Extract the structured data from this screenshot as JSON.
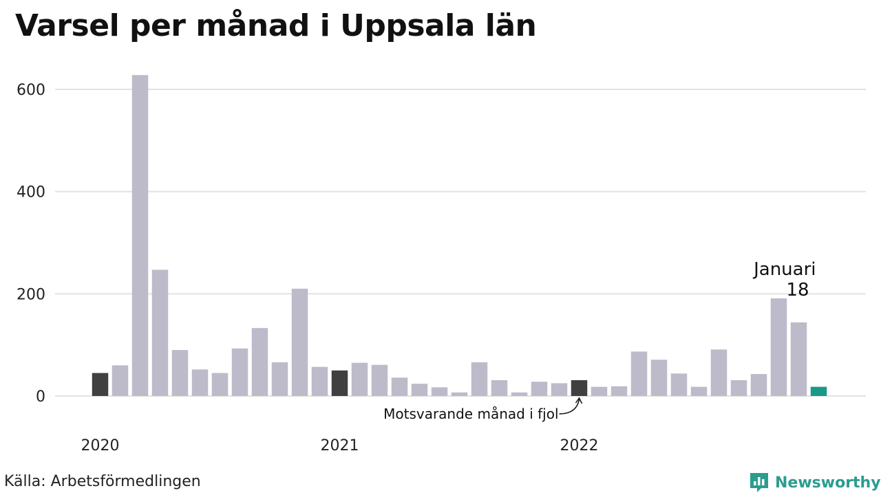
{
  "title": "Varsel per månad i Uppsala län",
  "source": "Källa: Arbetsförmedlingen",
  "brand": "Newsworthy",
  "colors": {
    "bar": "#bdbbca",
    "highlight_previous": "#404040",
    "current": "#1a9988",
    "grid": "#e2e2e2",
    "brand": "#2a9d8f"
  },
  "chart_data": {
    "type": "bar",
    "title": "Varsel per månad i Uppsala län",
    "xlabel": "",
    "ylabel": "",
    "ylim": [
      0,
      630
    ],
    "yticks": [
      0,
      200,
      400,
      600
    ],
    "grid": true,
    "x_year_labels": [
      {
        "label": "2020",
        "index": 0
      },
      {
        "label": "2021",
        "index": 12
      },
      {
        "label": "2022",
        "index": 24
      }
    ],
    "categories": [
      "2020-01",
      "2020-02",
      "2020-03",
      "2020-04",
      "2020-05",
      "2020-06",
      "2020-07",
      "2020-08",
      "2020-09",
      "2020-10",
      "2020-11",
      "2020-12",
      "2021-01",
      "2021-02",
      "2021-03",
      "2021-04",
      "2021-05",
      "2021-06",
      "2021-07",
      "2021-08",
      "2021-09",
      "2021-10",
      "2021-11",
      "2021-12",
      "2022-01",
      "2022-02",
      "2022-03",
      "2022-04",
      "2022-05",
      "2022-06",
      "2022-07",
      "2022-08",
      "2022-09",
      "2022-10",
      "2022-11",
      "2022-12",
      "2023-01"
    ],
    "values": [
      45,
      60,
      628,
      247,
      90,
      52,
      45,
      93,
      133,
      66,
      210,
      57,
      50,
      65,
      61,
      36,
      24,
      17,
      7,
      66,
      31,
      7,
      28,
      25,
      31,
      18,
      19,
      87,
      71,
      44,
      18,
      91,
      31,
      43,
      191,
      144,
      18
    ],
    "highlight_previous_indices": [
      0,
      12,
      24
    ],
    "current_index": 36,
    "annotations": {
      "current_label": "Januari",
      "current_value_label": "18",
      "previous_label": "Motsvarande månad i fjol"
    }
  }
}
